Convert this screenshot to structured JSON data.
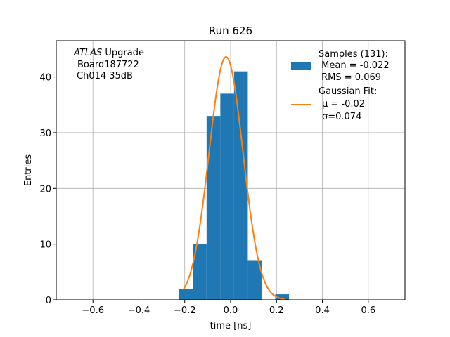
{
  "chart_data": {
    "type": "bar",
    "title": "Run 626",
    "xlabel": "time [ns]",
    "ylabel": "Entries",
    "xlim": [
      -0.76,
      0.76
    ],
    "ylim": [
      0,
      46.5
    ],
    "grid": true,
    "xticks": [
      {
        "value": -0.6,
        "label": "−0.6"
      },
      {
        "value": -0.4,
        "label": "−0.4"
      },
      {
        "value": -0.2,
        "label": "−0.2"
      },
      {
        "value": 0.0,
        "label": "0.0"
      },
      {
        "value": 0.2,
        "label": "0.2"
      },
      {
        "value": 0.4,
        "label": "0.4"
      },
      {
        "value": 0.6,
        "label": "0.6"
      }
    ],
    "yticks": [
      {
        "value": 0,
        "label": "0"
      },
      {
        "value": 10,
        "label": "10"
      },
      {
        "value": 20,
        "label": "20"
      },
      {
        "value": 30,
        "label": "30"
      },
      {
        "value": 40,
        "label": "40"
      }
    ],
    "histogram": {
      "color": "#1f77b4",
      "bins": [
        {
          "x0": -0.2245,
          "x1": -0.1646,
          "count": 2
        },
        {
          "x0": -0.1646,
          "x1": -0.1047,
          "count": 10
        },
        {
          "x0": -0.1047,
          "x1": -0.0449,
          "count": 33
        },
        {
          "x0": -0.0449,
          "x1": 0.015,
          "count": 37
        },
        {
          "x0": 0.015,
          "x1": 0.0749,
          "count": 41
        },
        {
          "x0": 0.0749,
          "x1": 0.1347,
          "count": 7
        },
        {
          "x0": 0.1347,
          "x1": 0.1946,
          "count": 0
        },
        {
          "x0": 0.1946,
          "x1": 0.2545,
          "count": 1
        }
      ]
    },
    "gaussian_fit": {
      "color": "#ff7f0e",
      "amplitude": 43.6,
      "mu": -0.02,
      "sigma": 0.074,
      "x_range": [
        -0.205,
        0.235
      ]
    },
    "legend": {
      "placement": "top-right",
      "samples_label": "Samples (131):",
      "mean_label": " Mean = -0.022",
      "rms_label": " RMS = 0.069",
      "fit_label": "Gaussian Fit:",
      "mu_label": "μ = -0.02",
      "sigma_label": "σ=0.074"
    },
    "annotation": {
      "experiment": "ATLAS",
      "experiment_suffix": " Upgrade",
      "board": "Board187722",
      "channel": "Ch014 35dB"
    }
  }
}
